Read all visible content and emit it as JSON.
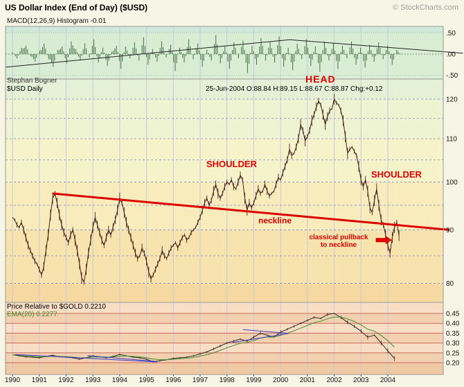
{
  "header": {
    "title": "US Dollar Index (End of Day) ($USD)",
    "copyright": "© StockCharts.com"
  },
  "macd_panel": {
    "label": "MACD(12,26,9) Histogram  -0.01",
    "y_ticks": [
      {
        "v": 0.5,
        "label": ".50"
      },
      {
        "v": 0.0,
        "label": ".00"
      },
      {
        "v": -0.5,
        "label": "-.50"
      }
    ]
  },
  "main_panel": {
    "watermark": "Stephan Bogner",
    "symbol": "$USD Daily",
    "quote": "25-Jun-2004 O:88.84 H:89.15 L:88.67 C:88.87 Chg:+0.12",
    "y_ticks": [
      {
        "v": 120,
        "label": "120"
      },
      {
        "v": 110,
        "label": "110"
      },
      {
        "v": 100,
        "label": "100"
      },
      {
        "v": 90,
        "label": "90"
      },
      {
        "v": 80,
        "label": "80"
      }
    ],
    "annotations": {
      "head": "HEAD",
      "shoulder_left": "SHOULDER",
      "shoulder_right": "SHOULDER",
      "neckline": "neckline",
      "pullback_line1": "classical pullback",
      "pullback_line2": "to neckline"
    }
  },
  "gold_panel": {
    "label": "Price Relative to $GOLD 0.2210",
    "ema_label": "EMA(20) 0.2277",
    "y_ticks": [
      {
        "v": 0.45,
        "label": "0.45"
      },
      {
        "v": 0.4,
        "label": "0.40"
      },
      {
        "v": 0.35,
        "label": "0.35"
      },
      {
        "v": 0.3,
        "label": "0.30"
      },
      {
        "v": 0.25,
        "label": "0.25"
      },
      {
        "v": 0.2,
        "label": "0.20"
      }
    ]
  },
  "x_axis": {
    "years": [
      "1990",
      "1991",
      "1992",
      "1993",
      "1994",
      "1995",
      "1996",
      "1997",
      "1998",
      "1999",
      "2000",
      "2001",
      "2002",
      "2003",
      "2004"
    ]
  },
  "colors": {
    "annotation_red": "#dd0000",
    "price": "#46221f",
    "histogram": "#417041",
    "ema": "#3f8f2f",
    "trendline_blue": "#3a3acc",
    "gold_line": "#2a2a2a"
  },
  "chart_data": {
    "type": "line",
    "x_range": [
      1990.0,
      2004.5
    ],
    "panels": [
      {
        "name": "macd_histogram",
        "type": "bar",
        "ylabel": "MACD(12,26,9) Histogram",
        "last_value": -0.01,
        "ylim": [
          -0.62,
          0.66
        ],
        "x_start": 1990.0,
        "x_step": 0.1686,
        "values": [
          0.05,
          -0.1,
          0.15,
          0.2,
          -0.05,
          -0.18,
          0.08,
          0.25,
          -0.12,
          -0.3,
          0.1,
          0.18,
          -0.22,
          0.3,
          0.12,
          -0.15,
          0.25,
          -0.08,
          0.35,
          -0.2,
          0.15,
          -0.28,
          0.06,
          0.2,
          -0.35,
          0.18,
          -0.1,
          0.28,
          -0.15,
          0.4,
          -0.25,
          0.12,
          -0.18,
          0.3,
          -0.08,
          0.22,
          -0.4,
          0.15,
          -0.2,
          0.35,
          -0.12,
          0.25,
          -0.3,
          0.1,
          -0.15,
          0.45,
          -0.22,
          0.18,
          -0.35,
          0.28,
          -0.1,
          0.32,
          -0.45,
          0.2,
          -0.25,
          0.38,
          -0.15,
          0.3,
          -0.2,
          0.42,
          -0.3,
          0.15,
          -0.38,
          0.25,
          -0.12,
          0.35,
          -0.28,
          0.18,
          -0.42,
          0.3,
          -0.15,
          0.25,
          -0.35,
          0.2,
          -0.1,
          0.3,
          -0.25,
          0.15,
          -0.32,
          0.22,
          -0.18,
          0.28,
          -0.12,
          0.2,
          -0.25,
          0.1,
          -0.01
        ],
        "overlay_trendline": [
          [
            1989.74,
            -0.31
          ],
          [
            2000.34,
            0.34
          ],
          [
            2006.8,
            0.02
          ]
        ]
      },
      {
        "name": "usd_price",
        "type": "line",
        "scale": "log",
        "ylim": [
          76.6,
          125.5
        ],
        "x_start": 1990.0,
        "x_step": 0.08333,
        "values": [
          92.5,
          92,
          91,
          90.5,
          91.5,
          90,
          88.5,
          87,
          86,
          85,
          84,
          83.5,
          82.5,
          81.5,
          83,
          86,
          89,
          93,
          96.5,
          97.5,
          95.5,
          93,
          91,
          89.5,
          88.5,
          87.5,
          89,
          90,
          88,
          86,
          83.5,
          81,
          80.2,
          82.5,
          85.5,
          88,
          90.5,
          92.5,
          91,
          89.5,
          88,
          87,
          88.5,
          90,
          89,
          90.5,
          92,
          94,
          96.5,
          95.5,
          93.5,
          91.5,
          90,
          88.5,
          87,
          85.5,
          84.5,
          85,
          86.5,
          85.5,
          84,
          82,
          80.8,
          81.5,
          82.5,
          83.5,
          84.5,
          86,
          85,
          84.5,
          85.5,
          86.5,
          87,
          87.5,
          86.5,
          87.5,
          88.5,
          89,
          88,
          88.5,
          89.5,
          90,
          90.5,
          91.5,
          92.5,
          94,
          95.5,
          96.5,
          95,
          96,
          98,
          99.5,
          97.5,
          96.5,
          97.5,
          99,
          100,
          99.5,
          100.5,
          99,
          98.5,
          100,
          101.5,
          100.5,
          96.5,
          94,
          95.5,
          94.5,
          95.5,
          97,
          98.5,
          97.5,
          98,
          99.5,
          98,
          97,
          97.5,
          98,
          99.5,
          101,
          100.5,
          102,
          103.5,
          105,
          107.5,
          106,
          106.5,
          108,
          110,
          113.5,
          112,
          109.5,
          110.5,
          112,
          114.5,
          116,
          118,
          119.5,
          118.5,
          116,
          113.5,
          115.5,
          117,
          117.5,
          120,
          119,
          118.5,
          117,
          114.5,
          110.5,
          106.5,
          107.5,
          108,
          107,
          106,
          103.5,
          100.5,
          99,
          100.5,
          98,
          94.5,
          93.5,
          96,
          98.5,
          95,
          92,
          91,
          89,
          87,
          85.5,
          88.5,
          90.5,
          91.5,
          88.9
        ],
        "neckline": {
          "x1": 1991.5,
          "y1": 97.5,
          "x2": 2006.3,
          "y2": 90.0
        },
        "pullback_arrow": {
          "x1": 2003.55,
          "x2": 2004.15,
          "y": 88.0
        }
      },
      {
        "name": "price_rel_gold",
        "type": "line",
        "ylabel": "Price Relative to $GOLD",
        "last_value": 0.221,
        "ema20_last": 0.2277,
        "ylim": [
          0.18,
          0.47
        ],
        "x_start": 1990.0,
        "x_step": 0.25,
        "values": [
          0.24,
          0.235,
          0.23,
          0.228,
          0.225,
          0.232,
          0.238,
          0.23,
          0.228,
          0.225,
          0.218,
          0.225,
          0.235,
          0.23,
          0.225,
          0.232,
          0.242,
          0.235,
          0.228,
          0.225,
          0.218,
          0.205,
          0.21,
          0.215,
          0.222,
          0.225,
          0.228,
          0.235,
          0.245,
          0.255,
          0.27,
          0.285,
          0.3,
          0.31,
          0.32,
          0.31,
          0.33,
          0.35,
          0.34,
          0.33,
          0.355,
          0.37,
          0.385,
          0.4,
          0.415,
          0.43,
          0.425,
          0.445,
          0.45,
          0.43,
          0.405,
          0.385,
          0.36,
          0.33,
          0.34,
          0.3,
          0.26,
          0.221
        ],
        "trendlines": [
          [
            [
              1990.1,
              0.242
            ],
            [
              1995.4,
              0.204
            ]
          ],
          [
            [
              1992.8,
              0.236
            ],
            [
              1995.4,
              0.206
            ]
          ],
          [
            [
              1998.2,
              0.302
            ],
            [
              2000.3,
              0.349
            ]
          ],
          [
            [
              1998.6,
              0.368
            ],
            [
              2000.3,
              0.349
            ]
          ]
        ]
      }
    ]
  }
}
